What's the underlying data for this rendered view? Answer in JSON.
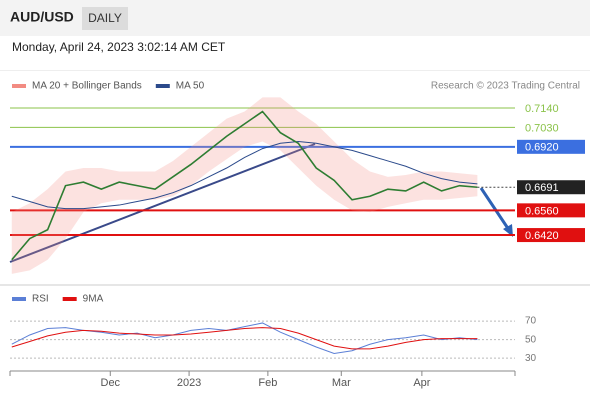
{
  "header": {
    "symbol": "AUD/USD",
    "timeframe": "DAILY",
    "datetime": "Monday, April 24, 2023 3:02:14 AM CET"
  },
  "chart_data": [
    {
      "type": "line",
      "source": "Research © 2023 Trading Central",
      "x": [
        0,
        1,
        2,
        3,
        4,
        5,
        6,
        7,
        8,
        9,
        10,
        11,
        12,
        13,
        14,
        15,
        16,
        17,
        18,
        19,
        20,
        21,
        22,
        23,
        24,
        25,
        26
      ],
      "xlim": [
        -0.1,
        28.1
      ],
      "ylim": [
        0.6137,
        0.7242
      ],
      "series": [
        {
          "name": "MA 20 + Bollinger Bands",
          "color": "#f28b82",
          "upper": [
            0.655,
            0.66,
            0.668,
            0.678,
            0.68,
            0.68,
            0.678,
            0.678,
            0.678,
            0.684,
            0.692,
            0.7,
            0.708,
            0.712,
            0.72,
            0.72,
            0.712,
            0.705,
            0.695,
            0.685,
            0.678,
            0.675,
            0.676,
            0.678,
            0.678,
            0.677,
            0.676
          ],
          "lower": [
            0.62,
            0.622,
            0.628,
            0.64,
            0.655,
            0.66,
            0.662,
            0.662,
            0.662,
            0.664,
            0.67,
            0.678,
            0.685,
            0.692,
            0.695,
            0.69,
            0.68,
            0.67,
            0.662,
            0.656,
            0.655,
            0.658,
            0.66,
            0.662,
            0.662,
            0.663,
            0.664
          ]
        },
        {
          "name": "MA 50",
          "color": "#2b4a8b",
          "values": [
            0.664,
            0.661,
            0.658,
            0.657,
            0.657,
            0.658,
            0.659,
            0.661,
            0.663,
            0.666,
            0.67,
            0.675,
            0.68,
            0.686,
            0.691,
            0.694,
            0.695,
            0.694,
            0.692,
            0.69,
            0.687,
            0.684,
            0.681,
            0.677,
            0.674,
            0.672,
            0.671
          ]
        },
        {
          "color": "#2e7d32",
          "values": [
            0.628,
            0.64,
            0.645,
            0.67,
            0.672,
            0.668,
            0.672,
            0.67,
            0.668,
            0.675,
            0.682,
            0.69,
            0.698,
            0.705,
            0.712,
            0.7,
            0.694,
            0.68,
            0.673,
            0.662,
            0.664,
            0.668,
            0.667,
            0.672,
            0.667,
            0.67,
            0.6691
          ]
        }
      ],
      "levels": [
        {
          "value": 0.714,
          "label": "0.7140",
          "color": "#8bc34a",
          "boxed": false,
          "line": "solid"
        },
        {
          "value": 0.703,
          "label": "0.7030",
          "color": "#8bc34a",
          "boxed": false,
          "line": "solid"
        },
        {
          "value": 0.692,
          "label": "0.6920",
          "color": "#3b6fe0",
          "boxed": true,
          "line": "solid"
        },
        {
          "value": 0.6691,
          "label": "0.6691",
          "color": "#222222",
          "boxed": true,
          "line": "dotted"
        },
        {
          "value": 0.656,
          "label": "0.6560",
          "color": "#e01010",
          "boxed": true,
          "line": "solid"
        },
        {
          "value": 0.642,
          "label": "0.6420",
          "color": "#e01010",
          "boxed": true,
          "line": "solid"
        }
      ]
    },
    {
      "type": "line",
      "x": [
        0,
        1,
        2,
        3,
        4,
        5,
        6,
        7,
        8,
        9,
        10,
        11,
        12,
        13,
        14,
        15,
        16,
        17,
        18,
        19,
        20,
        21,
        22,
        23,
        24,
        25,
        26
      ],
      "xlim": [
        -0.1,
        28.1
      ],
      "ylim": [
        15,
        82
      ],
      "yticks": [
        30,
        50,
        70
      ],
      "xticks": [
        {
          "value": 5.5,
          "label": "Dec"
        },
        {
          "value": 9.9,
          "label": "2023"
        },
        {
          "value": 14.3,
          "label": "Feb"
        },
        {
          "value": 18.4,
          "label": "Mar"
        },
        {
          "value": 22.9,
          "label": "Apr"
        }
      ],
      "series": [
        {
          "name": "RSI",
          "color": "#5b7fd6",
          "values": [
            45,
            55,
            62,
            63,
            60,
            58,
            55,
            57,
            52,
            55,
            60,
            62,
            60,
            64,
            68,
            58,
            50,
            42,
            35,
            38,
            45,
            50,
            52,
            55,
            50,
            52,
            50
          ]
        },
        {
          "name": "9MA",
          "color": "#e01010",
          "values": [
            42,
            48,
            54,
            58,
            60,
            59,
            57,
            56,
            55,
            55,
            56,
            58,
            60,
            62,
            63,
            62,
            57,
            50,
            43,
            40,
            40,
            43,
            47,
            50,
            51,
            51,
            51
          ]
        }
      ]
    }
  ]
}
